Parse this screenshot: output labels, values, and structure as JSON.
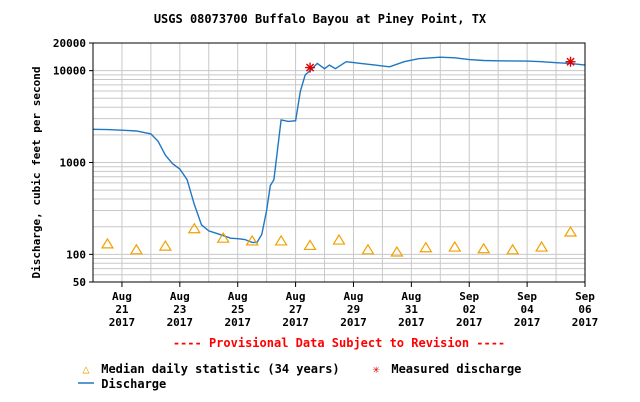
{
  "chart_data": {
    "type": "line",
    "title": "USGS 08073700 Buffalo Bayou at Piney Point, TX",
    "ylabel": "Discharge, cubic feet per second",
    "xlabel": "",
    "yscale": "log",
    "ylim": [
      50,
      20000
    ],
    "y_ticks": [
      "50",
      "100",
      "1000",
      "10000",
      "20000"
    ],
    "xlim": [
      "2017-08-20",
      "2017-09-06"
    ],
    "x_ticks": [
      {
        "date": "2017-08-21",
        "label": [
          "Aug",
          "21",
          "2017"
        ]
      },
      {
        "date": "2017-08-23",
        "label": [
          "Aug",
          "23",
          "2017"
        ]
      },
      {
        "date": "2017-08-25",
        "label": [
          "Aug",
          "25",
          "2017"
        ]
      },
      {
        "date": "2017-08-27",
        "label": [
          "Aug",
          "27",
          "2017"
        ]
      },
      {
        "date": "2017-08-29",
        "label": [
          "Aug",
          "29",
          "2017"
        ]
      },
      {
        "date": "2017-08-31",
        "label": [
          "Aug",
          "31",
          "2017"
        ]
      },
      {
        "date": "2017-09-02",
        "label": [
          "Sep",
          "02",
          "2017"
        ]
      },
      {
        "date": "2017-09-04",
        "label": [
          "Sep",
          "04",
          "2017"
        ]
      },
      {
        "date": "2017-09-06",
        "label": [
          "Sep",
          "06",
          "2017"
        ]
      }
    ],
    "grid": true,
    "series": [
      {
        "name": "Discharge",
        "color": "#1f77c4",
        "points": [
          [
            "2017-08-20 00:00",
            2300
          ],
          [
            "2017-08-20 12:00",
            2280
          ],
          [
            "2017-08-21 00:00",
            2250
          ],
          [
            "2017-08-21 12:00",
            2200
          ],
          [
            "2017-08-22 00:00",
            2050
          ],
          [
            "2017-08-22 06:00",
            1700
          ],
          [
            "2017-08-22 12:00",
            1200
          ],
          [
            "2017-08-22 18:00",
            970
          ],
          [
            "2017-08-23 00:00",
            850
          ],
          [
            "2017-08-23 06:00",
            650
          ],
          [
            "2017-08-23 12:00",
            350
          ],
          [
            "2017-08-23 18:00",
            210
          ],
          [
            "2017-08-24 00:00",
            180
          ],
          [
            "2017-08-24 06:00",
            170
          ],
          [
            "2017-08-24 12:00",
            160
          ],
          [
            "2017-08-24 18:00",
            150
          ],
          [
            "2017-08-25 00:00",
            148
          ],
          [
            "2017-08-25 06:00",
            145
          ],
          [
            "2017-08-25 12:00",
            135
          ],
          [
            "2017-08-25 16:00",
            135
          ],
          [
            "2017-08-25 20:00",
            165
          ],
          [
            "2017-08-26 00:00",
            300
          ],
          [
            "2017-08-26 03:00",
            560
          ],
          [
            "2017-08-26 06:00",
            650
          ],
          [
            "2017-08-26 12:00",
            2900
          ],
          [
            "2017-08-26 18:00",
            2800
          ],
          [
            "2017-08-27 00:00",
            2850
          ],
          [
            "2017-08-27 04:00",
            6000
          ],
          [
            "2017-08-27 08:00",
            9000
          ],
          [
            "2017-08-27 12:00",
            10000
          ],
          [
            "2017-08-27 18:00",
            12000
          ],
          [
            "2017-08-28 00:00",
            10500
          ],
          [
            "2017-08-28 04:00",
            11500
          ],
          [
            "2017-08-28 09:00",
            10500
          ],
          [
            "2017-08-28 18:00",
            12500
          ],
          [
            "2017-08-29 06:00",
            12000
          ],
          [
            "2017-08-29 18:00",
            11500
          ],
          [
            "2017-08-30 06:00",
            11000
          ],
          [
            "2017-08-30 18:00",
            12500
          ],
          [
            "2017-08-31 06:00",
            13500
          ],
          [
            "2017-09-01 00:00",
            14000
          ],
          [
            "2017-09-01 12:00",
            13800
          ],
          [
            "2017-09-02 00:00",
            13200
          ],
          [
            "2017-09-02 12:00",
            12900
          ],
          [
            "2017-09-03 00:00",
            12800
          ],
          [
            "2017-09-04 00:00",
            12700
          ],
          [
            "2017-09-04 12:00",
            12500
          ],
          [
            "2017-09-05 00:00",
            12200
          ],
          [
            "2017-09-05 12:00",
            12000
          ],
          [
            "2017-09-06 00:00",
            11500
          ]
        ]
      }
    ],
    "median_daily": {
      "name": "Median daily statistic (34 years)",
      "color": "#f0a000",
      "points": [
        [
          "2017-08-20 12:00",
          130
        ],
        [
          "2017-08-21 12:00",
          112
        ],
        [
          "2017-08-22 12:00",
          123
        ],
        [
          "2017-08-23 12:00",
          190
        ],
        [
          "2017-08-24 12:00",
          150
        ],
        [
          "2017-08-25 12:00",
          140
        ],
        [
          "2017-08-26 12:00",
          140
        ],
        [
          "2017-08-27 12:00",
          125
        ],
        [
          "2017-08-28 12:00",
          143
        ],
        [
          "2017-08-29 12:00",
          112
        ],
        [
          "2017-08-30 12:00",
          106
        ],
        [
          "2017-08-31 12:00",
          118
        ],
        [
          "2017-09-01 12:00",
          120
        ],
        [
          "2017-09-02 12:00",
          115
        ],
        [
          "2017-09-03 12:00",
          112
        ],
        [
          "2017-09-04 12:00",
          120
        ],
        [
          "2017-09-05 12:00",
          175
        ]
      ]
    },
    "measured": {
      "name": "Measured discharge",
      "color": "#dd0000",
      "points": [
        [
          "2017-08-27 12:00",
          10800
        ],
        [
          "2017-09-05 12:00",
          12500
        ]
      ]
    },
    "annotation": "---- Provisional Data Subject to Revision ----"
  },
  "legend": {
    "median_symbol": "△",
    "median_label": "Median daily statistic (34 years)",
    "measured_symbol": "✳",
    "measured_label": "Measured discharge",
    "discharge_label": "Discharge"
  }
}
